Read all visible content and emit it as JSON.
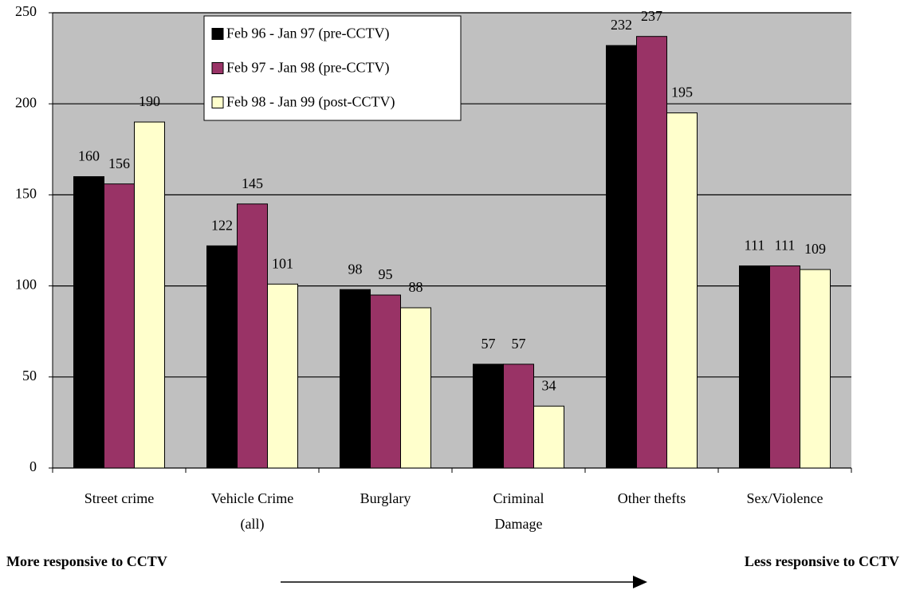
{
  "chart_data": {
    "type": "bar",
    "categories": [
      "Street crime",
      "Vehicle Crime (all)",
      "Burglary",
      "Criminal Damage",
      "Other thefts",
      "Sex/Violence"
    ],
    "series": [
      {
        "name": "Feb 96 - Jan 97 (pre-CCTV)",
        "color": "#000000",
        "values": [
          160,
          122,
          98,
          57,
          232,
          111
        ]
      },
      {
        "name": "Feb 97 - Jan 98 (pre-CCTV)",
        "color": "#993366",
        "values": [
          156,
          145,
          95,
          57,
          237,
          111
        ]
      },
      {
        "name": "Feb 98 - Jan 99 (post-CCTV)",
        "color": "#ffffcc",
        "values": [
          190,
          101,
          88,
          34,
          195,
          109
        ]
      }
    ],
    "ylim": [
      0,
      250
    ],
    "yticks": [
      0,
      50,
      100,
      150,
      200,
      250
    ],
    "grid": true,
    "legend": "top-left",
    "annotations": [
      "More responsive to CCTV",
      "Less responsive to CCTV"
    ]
  }
}
